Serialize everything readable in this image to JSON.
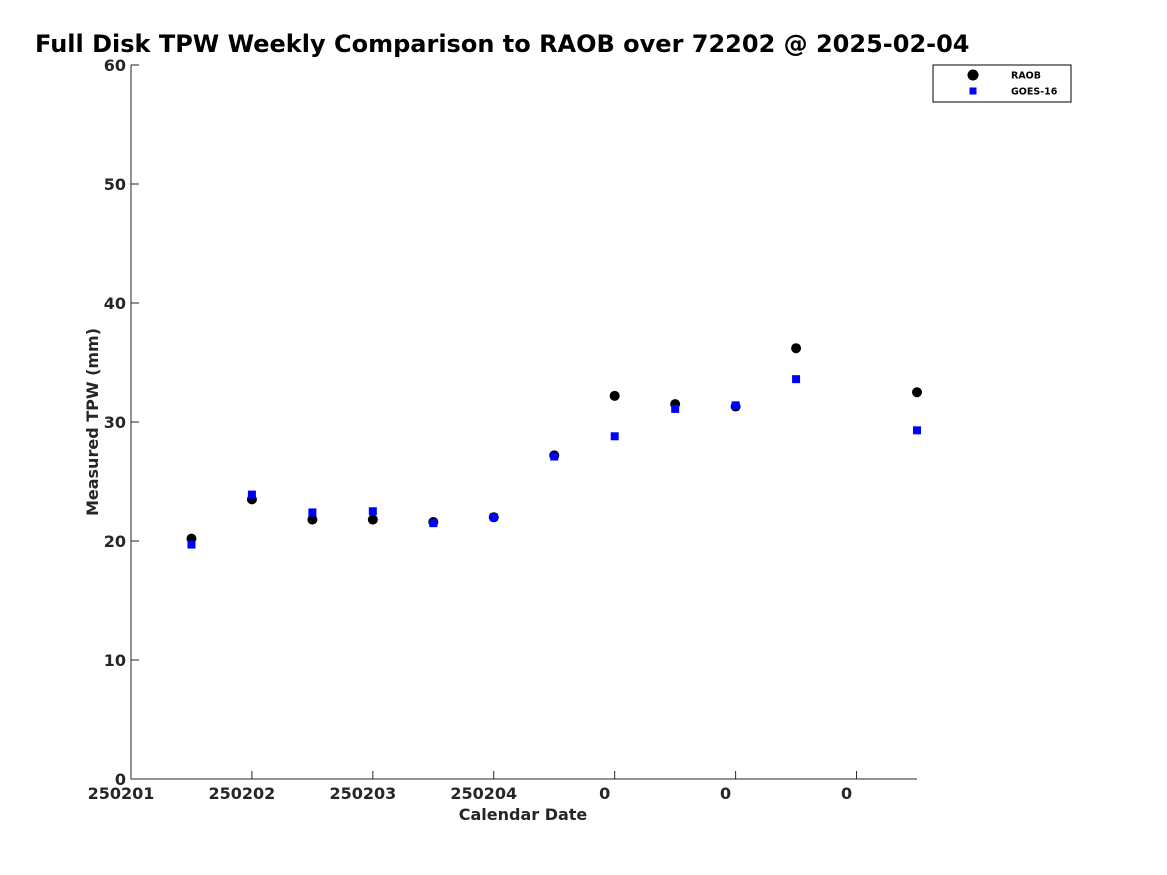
{
  "chart_data": {
    "type": "scatter",
    "title": "Full Disk TPW Weekly Comparison to RAOB over 72202 @ 2025-02-04",
    "xlabel": "Calendar Date",
    "ylabel": "Measured TPW (mm)",
    "ylim": [
      0,
      60
    ],
    "yticks": [
      0,
      10,
      20,
      30,
      40,
      50,
      60
    ],
    "xlim": [
      0,
      6.5
    ],
    "xticks": [
      0,
      1,
      2,
      3,
      4,
      5,
      6
    ],
    "xtick_labels": [
      "250201",
      "250202",
      "250203",
      "250204",
      "0",
      "0",
      "0"
    ],
    "grid": false,
    "legend_position": "top-right",
    "x": [
      0.5,
      1,
      1.5,
      2,
      2.5,
      3,
      3.5,
      4,
      4.5,
      5,
      5.5,
      6.5
    ],
    "series": [
      {
        "name": "RAOB",
        "marker": "circle",
        "color": "#000000",
        "values": [
          20.2,
          23.5,
          21.8,
          21.8,
          21.6,
          22.0,
          27.2,
          32.2,
          31.5,
          31.3,
          36.2,
          32.5
        ]
      },
      {
        "name": "GOES-16",
        "marker": "square",
        "color": "#0000ff",
        "values": [
          19.7,
          23.9,
          22.4,
          22.5,
          21.5,
          22.0,
          27.1,
          28.8,
          31.1,
          31.4,
          33.6,
          29.3
        ]
      }
    ]
  }
}
